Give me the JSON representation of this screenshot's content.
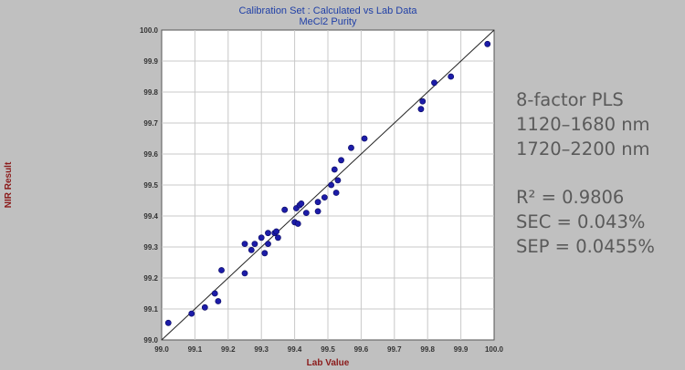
{
  "chart_data": {
    "type": "scatter",
    "title": "Calibration Set : Calculated vs Lab Data",
    "subtitle": "MeCl2 Purity",
    "xlabel": "Lab Value",
    "ylabel": "NIR Result",
    "xlim": [
      99.0,
      100.0
    ],
    "ylim": [
      99.0,
      100.0
    ],
    "xticks": [
      "99.0",
      "99.1",
      "99.2",
      "99.3",
      "99.4",
      "99.5",
      "99.6",
      "99.7",
      "99.8",
      "99.9",
      "100.0"
    ],
    "yticks": [
      "99.0",
      "99.1",
      "99.2",
      "99.3",
      "99.4",
      "99.5",
      "99.6",
      "99.7",
      "99.8",
      "99.9",
      "100.0"
    ],
    "grid": true,
    "reference_line": [
      [
        99.0,
        99.0
      ],
      [
        100.0,
        100.0
      ]
    ],
    "marker_color": "#1c1ca8",
    "points": [
      [
        99.02,
        99.055
      ],
      [
        99.09,
        99.085
      ],
      [
        99.13,
        99.105
      ],
      [
        99.16,
        99.15
      ],
      [
        99.17,
        99.125
      ],
      [
        99.18,
        99.225
      ],
      [
        99.25,
        99.215
      ],
      [
        99.25,
        99.31
      ],
      [
        99.27,
        99.29
      ],
      [
        99.28,
        99.31
      ],
      [
        99.3,
        99.33
      ],
      [
        99.31,
        99.28
      ],
      [
        99.32,
        99.345
      ],
      [
        99.32,
        99.31
      ],
      [
        99.34,
        99.345
      ],
      [
        99.345,
        99.35
      ],
      [
        99.35,
        99.33
      ],
      [
        99.37,
        99.42
      ],
      [
        99.4,
        99.38
      ],
      [
        99.405,
        99.425
      ],
      [
        99.41,
        99.375
      ],
      [
        99.415,
        99.435
      ],
      [
        99.42,
        99.44
      ],
      [
        99.435,
        99.41
      ],
      [
        99.47,
        99.415
      ],
      [
        99.47,
        99.445
      ],
      [
        99.49,
        99.46
      ],
      [
        99.51,
        99.5
      ],
      [
        99.52,
        99.55
      ],
      [
        99.525,
        99.475
      ],
      [
        99.53,
        99.515
      ],
      [
        99.54,
        99.58
      ],
      [
        99.57,
        99.62
      ],
      [
        99.61,
        99.65
      ],
      [
        99.78,
        99.745
      ],
      [
        99.785,
        99.77
      ],
      [
        99.82,
        99.83
      ],
      [
        99.87,
        99.85
      ],
      [
        99.98,
        99.955
      ]
    ]
  },
  "annotations": {
    "method": "8-factor PLS",
    "range1": "1120–1680 nm",
    "range2": "1720–2200 nm",
    "r2": "R² = 0.9806",
    "sec": "SEC = 0.043%",
    "sep": "SEP = 0.0455%"
  }
}
